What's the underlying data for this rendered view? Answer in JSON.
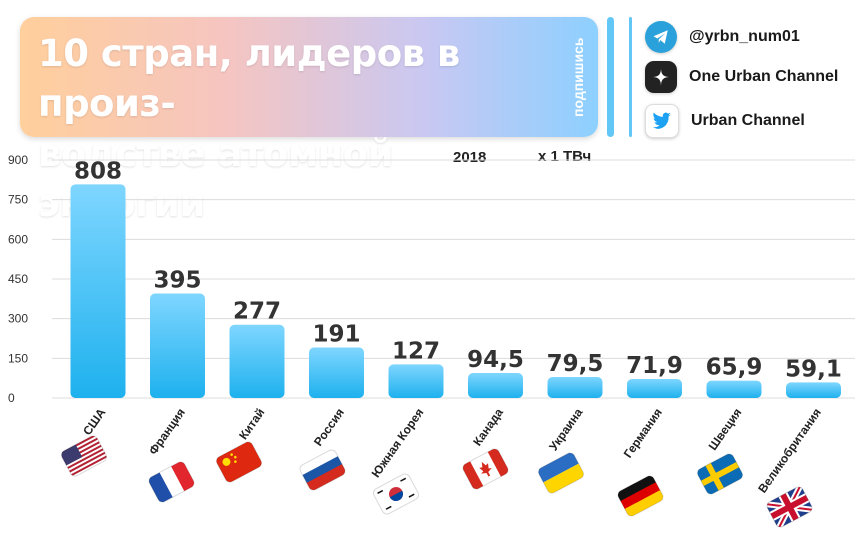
{
  "header": {
    "title_line1": "10 стран, лидеров в произ-",
    "title_line2": "водстве атомной энергии",
    "subscribe": "подпишись"
  },
  "social": [
    {
      "icon": "telegram-icon",
      "label": "@yrbn_num01",
      "color": "#2aa1da"
    },
    {
      "icon": "zen-icon",
      "label": "One Urban Channel",
      "color": "#222222"
    },
    {
      "icon": "twitter-icon",
      "label": "Urban Channel",
      "color": "#1da1f2"
    }
  ],
  "chart_data": {
    "type": "bar",
    "year_label": "2018",
    "unit_label": "x 1 ТВч",
    "categories": [
      "США",
      "Франция",
      "Китай",
      "Россия",
      "Южная Корея",
      "Канада",
      "Украина",
      "Германия",
      "Швеция",
      "Великобритания"
    ],
    "values": [
      808,
      395,
      277,
      191,
      127,
      94.5,
      79.5,
      71.9,
      65.9,
      59.1
    ],
    "value_labels": [
      "808",
      "395",
      "277",
      "191",
      "127",
      "94,5",
      "79,5",
      "71,9",
      "65,9",
      "59,1"
    ],
    "ylim": [
      0,
      900
    ],
    "yticks": [
      0,
      150,
      300,
      450,
      600,
      750,
      900
    ],
    "grid": true,
    "bar_color_top": "#7fd6ff",
    "bar_color_bottom": "#1eb1ee",
    "flags": [
      "us-flag-icon",
      "fr-flag-icon",
      "cn-flag-icon",
      "ru-flag-icon",
      "kr-flag-icon",
      "ca-flag-icon",
      "ua-flag-icon",
      "de-flag-icon",
      "se-flag-icon",
      "gb-flag-icon"
    ]
  }
}
